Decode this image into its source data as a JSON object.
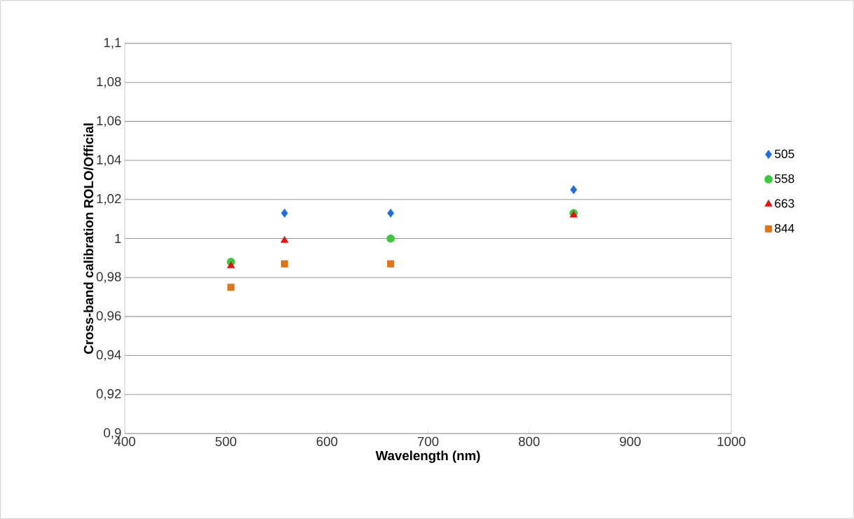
{
  "chart_data": {
    "type": "scatter",
    "xlabel": "Wavelength (nm)",
    "ylabel": "Cross-band calibration ROLO/Official",
    "x": [
      505,
      558,
      663,
      844
    ],
    "series": [
      {
        "name": "505",
        "color": "#1f6fe0",
        "marker": "diamond",
        "values": [
          null,
          1.013,
          1.013,
          1.025
        ]
      },
      {
        "name": "558",
        "color": "#3cc83c",
        "marker": "circle",
        "values": [
          0.988,
          null,
          1.0,
          1.013
        ]
      },
      {
        "name": "663",
        "color": "#e81010",
        "marker": "triangle",
        "values": [
          0.986,
          0.999,
          null,
          1.012
        ]
      },
      {
        "name": "844",
        "color": "#e07418",
        "marker": "square",
        "values": [
          0.975,
          0.987,
          0.987,
          null
        ]
      }
    ],
    "xlim": [
      400,
      1000
    ],
    "xticks": [
      400,
      500,
      600,
      700,
      800,
      900,
      1000
    ],
    "ylim": [
      0.9,
      1.1
    ],
    "yticks": [
      {
        "value": 0.9,
        "label": "0,9"
      },
      {
        "value": 0.92,
        "label": "0,92"
      },
      {
        "value": 0.94,
        "label": "0,94"
      },
      {
        "value": 0.96,
        "label": "0,96"
      },
      {
        "value": 0.98,
        "label": "0,98"
      },
      {
        "value": 1,
        "label": "1"
      },
      {
        "value": 1.02,
        "label": "1,02"
      },
      {
        "value": 1.04,
        "label": "1,04"
      },
      {
        "value": 1.06,
        "label": "1,06"
      },
      {
        "value": 1.08,
        "label": "1,08"
      },
      {
        "value": 1.1,
        "label": "1,1"
      }
    ],
    "grid": "y",
    "legend": "right"
  }
}
